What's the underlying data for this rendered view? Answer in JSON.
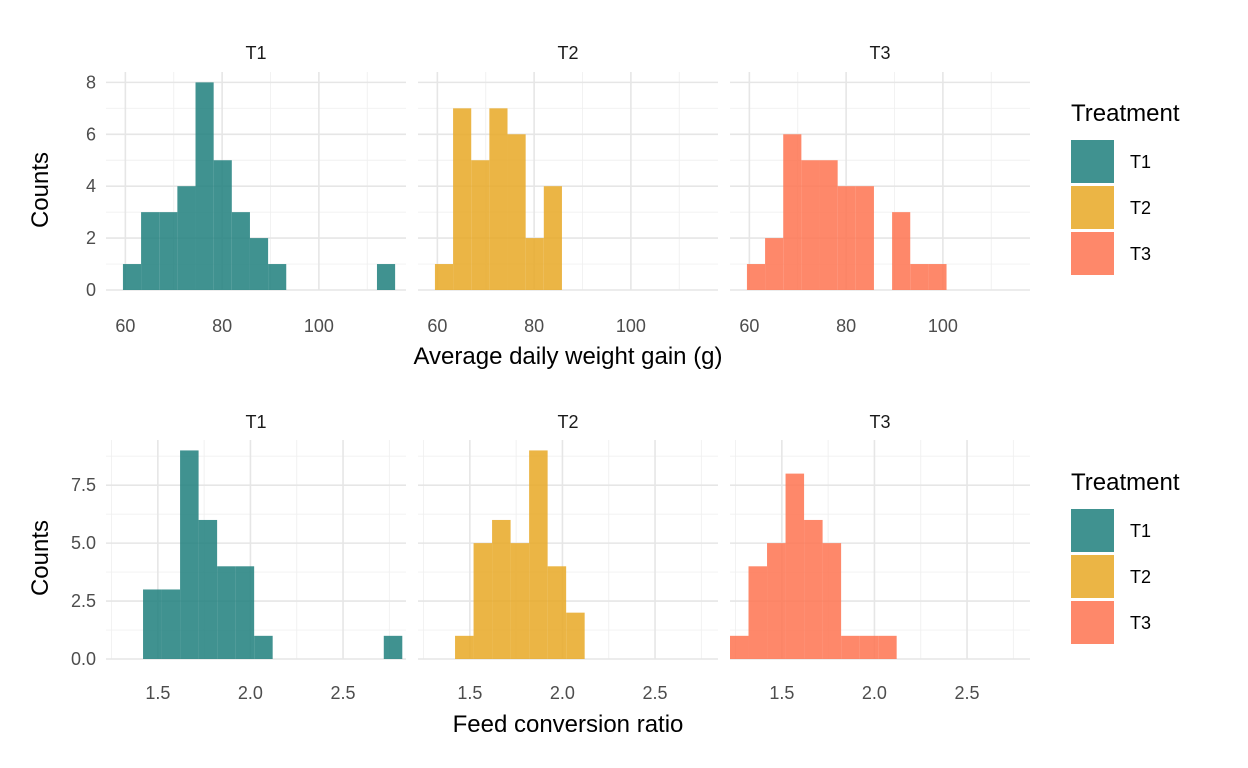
{
  "colors": {
    "T1": "#1e7f7c",
    "T2": "#e8a825",
    "T3": "#fe7350"
  },
  "legend": {
    "title": "Treatment",
    "items": [
      {
        "label": "T1",
        "color": "#1e7f7c"
      },
      {
        "label": "T2",
        "color": "#e8a825"
      },
      {
        "label": "T3",
        "color": "#fe7350"
      }
    ]
  },
  "chart_data": [
    {
      "type": "bar",
      "xlabel": "Average daily weight gain (g)",
      "ylabel": "Counts",
      "xlim": [
        56,
        118
      ],
      "ylim": [
        0,
        8.4
      ],
      "xticks": [
        60,
        80,
        100
      ],
      "xtick_labels": [
        "60",
        "80",
        "100"
      ],
      "xminor": [
        70,
        90,
        110
      ],
      "yticks": [
        0,
        2,
        4,
        6,
        8
      ],
      "ytick_labels": [
        "0",
        "2",
        "4",
        "6",
        "8"
      ],
      "yminor": [
        1,
        3,
        5,
        7
      ],
      "bin_width": 3.75,
      "legend_position": "right",
      "panels": [
        {
          "name": "T1",
          "bins": [
            [
              59.5,
              1
            ],
            [
              63.25,
              3
            ],
            [
              67,
              3
            ],
            [
              70.75,
              4
            ],
            [
              74.5,
              8
            ],
            [
              78.25,
              5
            ],
            [
              82,
              3
            ],
            [
              85.75,
              2
            ],
            [
              89.5,
              1
            ],
            [
              93.25,
              0
            ],
            [
              97,
              0
            ],
            [
              100.75,
              0
            ],
            [
              104.5,
              0
            ],
            [
              108.25,
              0
            ],
            [
              112,
              1
            ]
          ]
        },
        {
          "name": "T2",
          "bins": [
            [
              59.5,
              1
            ],
            [
              63.25,
              7
            ],
            [
              67,
              5
            ],
            [
              70.75,
              7
            ],
            [
              74.5,
              6
            ],
            [
              78.25,
              2
            ],
            [
              82,
              4
            ]
          ]
        },
        {
          "name": "T3",
          "bins": [
            [
              59.5,
              1
            ],
            [
              63.25,
              2
            ],
            [
              67,
              6
            ],
            [
              70.75,
              5
            ],
            [
              74.5,
              5
            ],
            [
              78.25,
              4
            ],
            [
              82,
              4
            ],
            [
              85.75,
              0
            ],
            [
              89.5,
              3
            ],
            [
              93.25,
              1
            ],
            [
              97,
              1
            ]
          ]
        }
      ]
    },
    {
      "type": "bar",
      "xlabel": "Feed conversion ratio",
      "ylabel": "Counts",
      "xlim": [
        1.22,
        2.84
      ],
      "ylim": [
        0,
        9.45
      ],
      "xticks": [
        1.5,
        2.0,
        2.5
      ],
      "xtick_labels": [
        "1.5",
        "2.0",
        "2.5"
      ],
      "xminor": [
        1.25,
        1.75,
        2.25,
        2.75
      ],
      "yticks": [
        0,
        2.5,
        5,
        7.5
      ],
      "ytick_labels": [
        "0.0",
        "2.5",
        "5.0",
        "7.5"
      ],
      "yminor": [
        1.25,
        3.75,
        6.25,
        8.75
      ],
      "bin_width": 0.1,
      "legend_position": "right",
      "panels": [
        {
          "name": "T1",
          "bins": [
            [
              1.42,
              3
            ],
            [
              1.52,
              3
            ],
            [
              1.62,
              9
            ],
            [
              1.72,
              6
            ],
            [
              1.82,
              4
            ],
            [
              1.92,
              4
            ],
            [
              2.02,
              1
            ],
            [
              2.12,
              0
            ],
            [
              2.22,
              0
            ],
            [
              2.32,
              0
            ],
            [
              2.42,
              0
            ],
            [
              2.52,
              0
            ],
            [
              2.62,
              0
            ],
            [
              2.72,
              1
            ]
          ]
        },
        {
          "name": "T2",
          "bins": [
            [
              1.42,
              1
            ],
            [
              1.52,
              5
            ],
            [
              1.62,
              6
            ],
            [
              1.72,
              5
            ],
            [
              1.82,
              9
            ],
            [
              1.92,
              4
            ],
            [
              2.02,
              2
            ]
          ]
        },
        {
          "name": "T3",
          "bins": [
            [
              1.22,
              1
            ],
            [
              1.32,
              4
            ],
            [
              1.42,
              5
            ],
            [
              1.52,
              8
            ],
            [
              1.62,
              6
            ],
            [
              1.72,
              5
            ],
            [
              1.82,
              1
            ],
            [
              1.92,
              1
            ],
            [
              2.02,
              1
            ]
          ]
        }
      ]
    }
  ]
}
